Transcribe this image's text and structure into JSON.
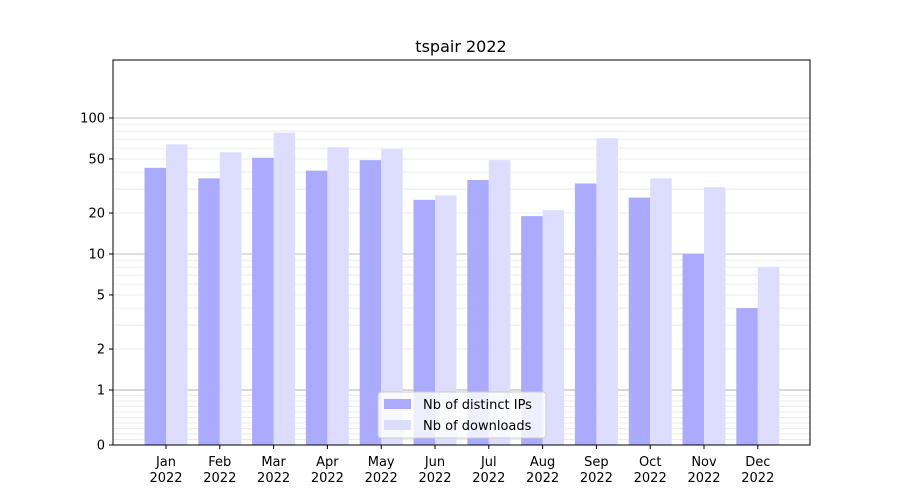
{
  "chart_data": {
    "type": "bar",
    "title": "tspair 2022",
    "xlabel": "",
    "ylabel": "",
    "yscale": "symlog",
    "ylim": [
      0,
      120
    ],
    "yticks": [
      0,
      1,
      2,
      5,
      10,
      20,
      50,
      100
    ],
    "ytick_labels": [
      "0",
      "1",
      "2",
      "5",
      "10",
      "20",
      "50",
      "100"
    ],
    "categories": [
      "Jan\n2022",
      "Feb\n2022",
      "Mar\n2022",
      "Apr\n2022",
      "May\n2022",
      "Jun\n2022",
      "Jul\n2022",
      "Aug\n2022",
      "Sep\n2022",
      "Oct\n2022",
      "Nov\n2022",
      "Dec\n2022"
    ],
    "series": [
      {
        "name": "Nb of distinct IPs",
        "color": "#aaaaff",
        "values": [
          43,
          36,
          51,
          41,
          49,
          25,
          35,
          19,
          33,
          26,
          10,
          4
        ]
      },
      {
        "name": "Nb of downloads",
        "color": "#ddddff",
        "values": [
          64,
          56,
          78,
          61,
          59,
          27,
          49,
          21,
          71,
          36,
          31,
          8
        ]
      }
    ],
    "grid": true,
    "legend_position": "bottom-center"
  }
}
